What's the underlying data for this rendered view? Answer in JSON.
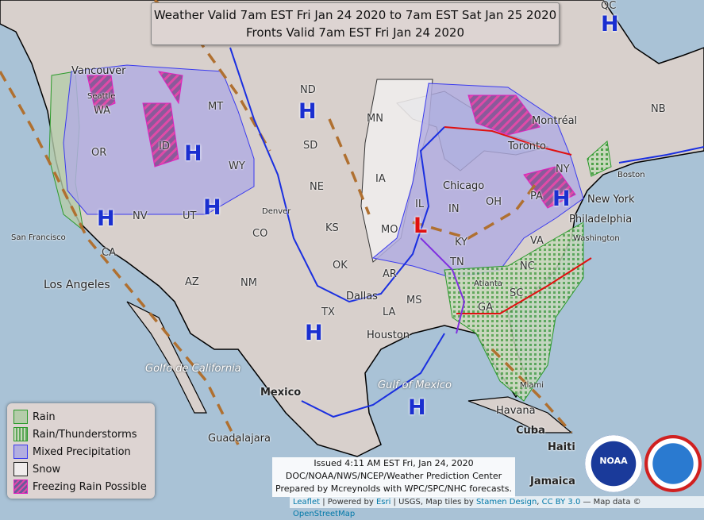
{
  "title": {
    "line1": "Weather Valid 7am EST Fri Jan 24 2020 to 7am EST Sat Jan 25 2020",
    "line2": "Fronts Valid 7am EST Fri Jan 24 2020"
  },
  "legend": [
    {
      "label": "Rain",
      "fill": "#b5ccaa",
      "border": "#2a9a2a"
    },
    {
      "label": "Rain/Thunderstorms",
      "fill": "#b5ccaa",
      "border": "#2a9a2a"
    },
    {
      "label": "Mixed Precipitation",
      "fill": "#b3aee0",
      "border": "#3a3aee"
    },
    {
      "label": "Snow",
      "fill": "#f0ecec",
      "border": "#222222"
    },
    {
      "label": "Freezing Rain Possible",
      "fill": "#8a5a9a",
      "border": "#e020c0"
    }
  ],
  "issued": {
    "line1": "Issued 4:11 AM EST Fri, Jan 24, 2020",
    "line2": "DOC/NOAA/NWS/NCEP/Weather Prediction Center",
    "line3": "Prepared by Mcreynolds with WPC/SPC/NHC forecasts."
  },
  "attribution": {
    "leaflet": "Leaflet",
    "sep1": " | Powered by ",
    "esri": "Esri",
    "sep2": " | USGS, Map tiles by ",
    "stamen": "Stamen Design",
    "sep3": ", ",
    "cc": "CC BY 3.0",
    "sep4": " — Map data © ",
    "osm": "OpenStreetMap"
  },
  "logos": {
    "noaa": "NOAA",
    "nws": "NATIONAL WEATHER SERVICE"
  },
  "pressure_centers": [
    {
      "type": "H",
      "label": "H"
    },
    {
      "type": "H",
      "label": "H"
    },
    {
      "type": "H",
      "label": "H"
    },
    {
      "type": "H",
      "label": "H"
    },
    {
      "type": "H",
      "label": "H"
    },
    {
      "type": "H",
      "label": "H"
    },
    {
      "type": "H",
      "label": "H"
    },
    {
      "type": "H",
      "label": "H"
    },
    {
      "type": "L",
      "label": "L"
    }
  ],
  "states": [
    "WA",
    "OR",
    "ID",
    "MT",
    "WY",
    "ND",
    "SD",
    "MN",
    "NE",
    "IA",
    "NV",
    "UT",
    "CO",
    "KS",
    "MO",
    "IL",
    "IN",
    "OH",
    "CA",
    "AZ",
    "NM",
    "OK",
    "AR",
    "TX",
    "MS",
    "LA",
    "TN",
    "KY",
    "GA",
    "SC",
    "NC",
    "VA",
    "NY",
    "NB",
    "QC",
    "PA"
  ],
  "cities": [
    "Vancouver",
    "Seattle",
    "San Francisco",
    "Los Angeles",
    "Denver",
    "Dallas",
    "Houston",
    "Chicago",
    "Toronto",
    "Montréal",
    "Boston",
    "New York",
    "Philadelphia",
    "Washington",
    "Atlanta",
    "Miami",
    "Havana",
    "Cuba",
    "Mexico",
    "Guadalajara",
    "Golfo de California",
    "Gulf of Mexico",
    "Jamaica",
    "Haiti"
  ]
}
